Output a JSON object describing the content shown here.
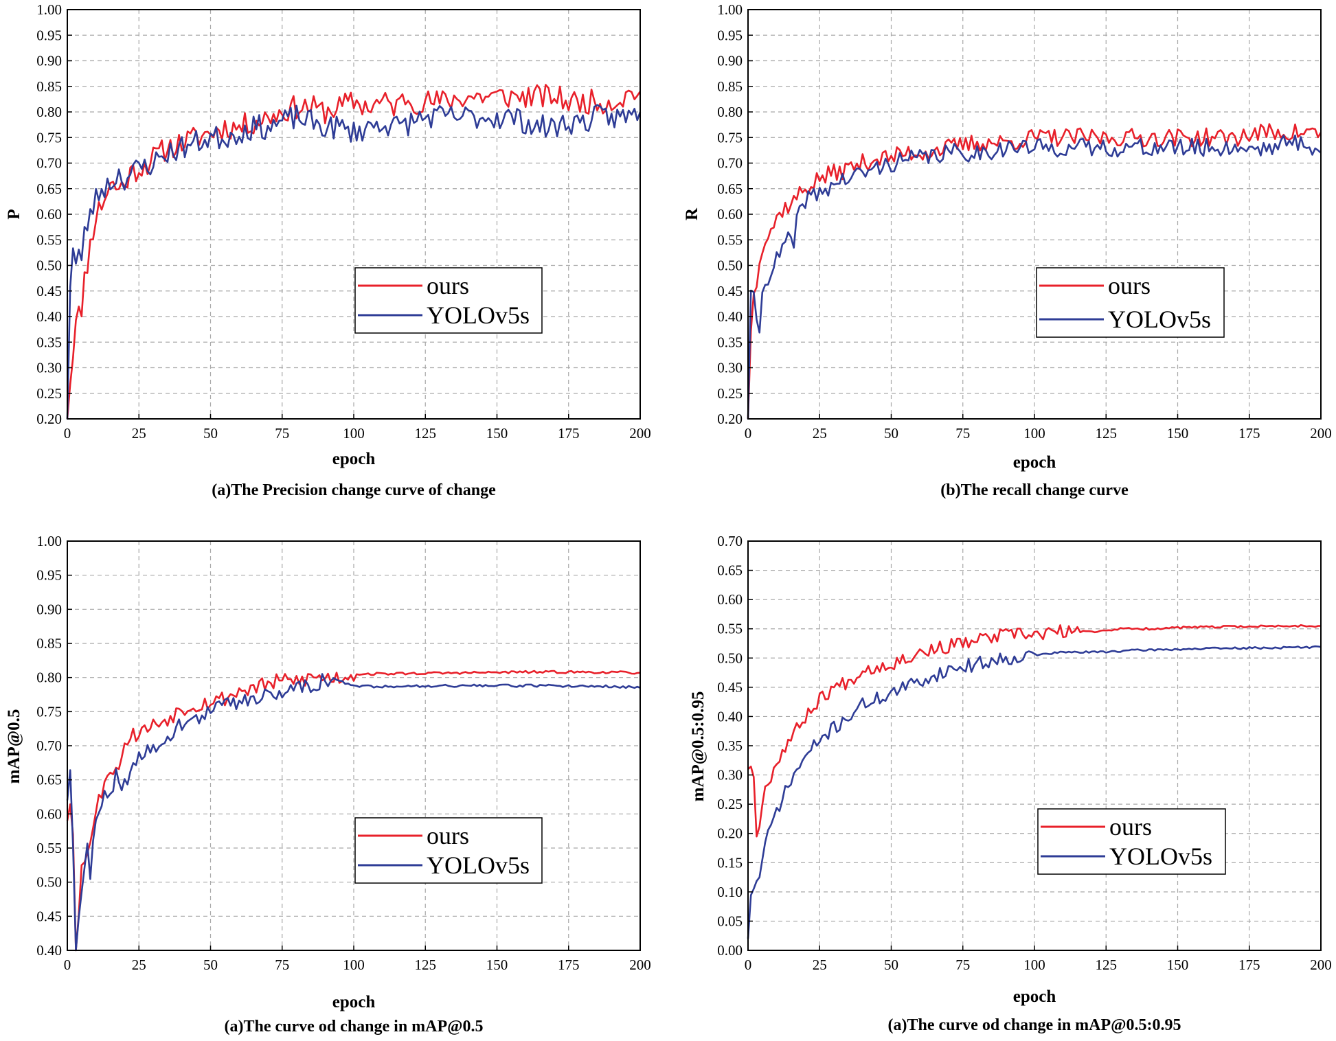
{
  "colors": {
    "ours": "#e8202a",
    "yolo": "#2e3c96",
    "grid": "#a8a8a8"
  },
  "chart_data": [
    {
      "type": "line",
      "caption": "(a)The Precision change curve of change",
      "xlabel": "epoch",
      "ylabel": "P",
      "xlim": [
        0,
        200
      ],
      "ylim": [
        0.2,
        1.0
      ],
      "xticks": [
        0,
        25,
        50,
        75,
        100,
        125,
        150,
        175,
        200
      ],
      "xtick_labels": [
        "0",
        "25",
        "50",
        "75",
        "100",
        "125",
        "150",
        "175",
        "200"
      ],
      "yticks": [
        0.2,
        0.25,
        0.3,
        0.35,
        0.4,
        0.45,
        0.5,
        0.55,
        0.6,
        0.65,
        0.7,
        0.75,
        0.8,
        0.85,
        0.9,
        0.95,
        1.0
      ],
      "ytick_labels": [
        "0.20",
        "0.25",
        "0.30",
        "0.35",
        "0.40",
        "0.45",
        "0.50",
        "0.55",
        "0.60",
        "0.65",
        "0.70",
        "0.75",
        "0.80",
        "0.85",
        "0.90",
        "0.95",
        "1.00"
      ],
      "grid": true,
      "legend_position": "middle-right",
      "series": [
        {
          "name": "ours",
          "color_key": "ours",
          "x": [
            0,
            1,
            2,
            3,
            4,
            5,
            6,
            8,
            10,
            12,
            15,
            18,
            20,
            22,
            25,
            28,
            30,
            35,
            40,
            45,
            50,
            55,
            60,
            65,
            70,
            75,
            80,
            85,
            90,
            95,
            100,
            105,
            110,
            115,
            118,
            120,
            125,
            130,
            140,
            150,
            160,
            170,
            175,
            180,
            185,
            190,
            195,
            197,
            200
          ],
          "y": [
            0.2,
            0.28,
            0.33,
            0.4,
            0.44,
            0.39,
            0.47,
            0.54,
            0.6,
            0.62,
            0.66,
            0.65,
            0.66,
            0.68,
            0.69,
            0.7,
            0.71,
            0.73,
            0.74,
            0.75,
            0.76,
            0.77,
            0.77,
            0.78,
            0.79,
            0.8,
            0.81,
            0.81,
            0.8,
            0.81,
            0.82,
            0.81,
            0.82,
            0.81,
            0.83,
            0.82,
            0.82,
            0.82,
            0.83,
            0.83,
            0.83,
            0.83,
            0.82,
            0.82,
            0.82,
            0.82,
            0.83,
            0.84,
            0.84
          ],
          "noise": 0.012,
          "seed": 11
        },
        {
          "name": "YOLOv5s",
          "color_key": "yolo",
          "x": [
            0,
            1,
            2,
            3,
            4,
            5,
            6,
            8,
            10,
            12,
            15,
            18,
            20,
            25,
            30,
            35,
            40,
            45,
            50,
            55,
            60,
            65,
            70,
            75,
            80,
            85,
            90,
            95,
            100,
            105,
            110,
            115,
            120,
            125,
            130,
            135,
            140,
            145,
            150,
            155,
            160,
            165,
            170,
            175,
            180,
            185,
            190,
            195,
            200
          ],
          "y": [
            0.2,
            0.47,
            0.54,
            0.5,
            0.53,
            0.5,
            0.56,
            0.6,
            0.63,
            0.65,
            0.66,
            0.68,
            0.67,
            0.69,
            0.7,
            0.72,
            0.73,
            0.74,
            0.75,
            0.75,
            0.76,
            0.77,
            0.77,
            0.78,
            0.79,
            0.78,
            0.77,
            0.77,
            0.76,
            0.77,
            0.78,
            0.77,
            0.78,
            0.79,
            0.79,
            0.79,
            0.79,
            0.79,
            0.79,
            0.79,
            0.78,
            0.77,
            0.77,
            0.78,
            0.78,
            0.79,
            0.79,
            0.79,
            0.8
          ],
          "noise": 0.012,
          "seed": 23
        }
      ]
    },
    {
      "type": "line",
      "caption": "(b)The recall change curve",
      "xlabel": "epoch",
      "ylabel": "R",
      "xlim": [
        0,
        200
      ],
      "ylim": [
        0.2,
        1.0
      ],
      "xticks": [
        0,
        25,
        50,
        75,
        100,
        125,
        150,
        175,
        200
      ],
      "xtick_labels": [
        "0",
        "25",
        "50",
        "75",
        "100",
        "125",
        "150",
        "175",
        "200"
      ],
      "yticks": [
        0.2,
        0.25,
        0.3,
        0.35,
        0.4,
        0.45,
        0.5,
        0.55,
        0.6,
        0.65,
        0.7,
        0.75,
        0.8,
        0.85,
        0.9,
        0.95,
        1.0
      ],
      "ytick_labels": [
        "0.20",
        "0.25",
        "0.30",
        "0.35",
        "0.40",
        "0.45",
        "0.50",
        "0.55",
        "0.60",
        "0.65",
        "0.70",
        "0.75",
        "0.80",
        "0.85",
        "0.90",
        "0.95",
        "1.00"
      ],
      "grid": true,
      "legend_position": "middle-right",
      "series": [
        {
          "name": "ours",
          "color_key": "ours",
          "x": [
            0,
            1,
            2,
            3,
            4,
            5,
            8,
            10,
            12,
            15,
            18,
            20,
            25,
            30,
            35,
            40,
            45,
            50,
            55,
            60,
            70,
            80,
            90,
            100,
            110,
            120,
            130,
            140,
            150,
            160,
            170,
            180,
            190,
            200
          ],
          "y": [
            0.2,
            0.38,
            0.44,
            0.47,
            0.52,
            0.54,
            0.57,
            0.59,
            0.61,
            0.62,
            0.64,
            0.65,
            0.67,
            0.68,
            0.69,
            0.7,
            0.71,
            0.71,
            0.72,
            0.72,
            0.73,
            0.74,
            0.74,
            0.75,
            0.75,
            0.75,
            0.75,
            0.75,
            0.75,
            0.75,
            0.75,
            0.76,
            0.76,
            0.76
          ],
          "noise": 0.009,
          "seed": 37
        },
        {
          "name": "YOLOv5s",
          "color_key": "yolo",
          "x": [
            0,
            1,
            2,
            3,
            4,
            5,
            6,
            8,
            10,
            12,
            15,
            16,
            17,
            18,
            20,
            25,
            30,
            35,
            40,
            45,
            50,
            60,
            70,
            80,
            90,
            100,
            110,
            120,
            130,
            140,
            150,
            160,
            170,
            180,
            190,
            195,
            200
          ],
          "y": [
            0.2,
            0.46,
            0.43,
            0.38,
            0.38,
            0.44,
            0.47,
            0.49,
            0.51,
            0.53,
            0.56,
            0.53,
            0.58,
            0.6,
            0.63,
            0.64,
            0.66,
            0.67,
            0.68,
            0.69,
            0.7,
            0.71,
            0.72,
            0.72,
            0.73,
            0.73,
            0.73,
            0.73,
            0.73,
            0.73,
            0.73,
            0.73,
            0.73,
            0.73,
            0.74,
            0.74,
            0.72
          ],
          "noise": 0.009,
          "seed": 41
        }
      ]
    },
    {
      "type": "line",
      "caption": "(a)The curve od change in mAP@0.5",
      "xlabel": "epoch",
      "ylabel": "mAP@0.5",
      "xlim": [
        0,
        200
      ],
      "ylim": [
        0.4,
        1.0
      ],
      "xticks": [
        0,
        25,
        50,
        75,
        100,
        125,
        150,
        175,
        200
      ],
      "xtick_labels": [
        "0",
        "25",
        "50",
        "75",
        "100",
        "125",
        "150",
        "175",
        "200"
      ],
      "yticks": [
        0.4,
        0.45,
        0.5,
        0.55,
        0.6,
        0.65,
        0.7,
        0.75,
        0.8,
        0.85,
        0.9,
        0.95,
        1.0
      ],
      "ytick_labels": [
        "0.40",
        "0.45",
        "0.50",
        "0.55",
        "0.60",
        "0.65",
        "0.70",
        "0.75",
        "0.80",
        "0.85",
        "0.90",
        "0.95",
        "1.00"
      ],
      "grid": true,
      "legend_position": "middle-right",
      "series": [
        {
          "name": "ours",
          "color_key": "ours",
          "x": [
            0,
            1,
            2,
            3,
            4,
            5,
            7,
            9,
            11,
            13,
            15,
            17,
            19,
            21,
            25,
            30,
            35,
            40,
            45,
            50,
            55,
            60,
            65,
            70,
            75,
            80,
            85,
            90,
            95,
            100,
            120,
            140,
            160,
            180,
            200
          ],
          "y": [
            0.59,
            0.62,
            0.58,
            0.4,
            0.45,
            0.52,
            0.55,
            0.58,
            0.62,
            0.65,
            0.67,
            0.66,
            0.69,
            0.71,
            0.72,
            0.73,
            0.74,
            0.755,
            0.76,
            0.765,
            0.77,
            0.78,
            0.785,
            0.79,
            0.795,
            0.795,
            0.8,
            0.8,
            0.8,
            0.805,
            0.806,
            0.807,
            0.808,
            0.808,
            0.807
          ],
          "noise": 0.006,
          "seed": 53,
          "noise_until": 100
        },
        {
          "name": "YOLOv5s",
          "color_key": "yolo",
          "x": [
            0,
            1,
            2,
            3,
            4,
            5,
            7,
            8,
            9,
            11,
            13,
            15,
            17,
            20,
            25,
            30,
            35,
            40,
            45,
            50,
            55,
            60,
            65,
            70,
            75,
            80,
            85,
            90,
            95,
            100,
            110,
            130,
            150,
            170,
            190,
            200
          ],
          "y": [
            0.62,
            0.67,
            0.55,
            0.4,
            0.44,
            0.48,
            0.55,
            0.5,
            0.56,
            0.6,
            0.64,
            0.63,
            0.66,
            0.64,
            0.68,
            0.7,
            0.715,
            0.73,
            0.74,
            0.75,
            0.76,
            0.765,
            0.77,
            0.775,
            0.78,
            0.785,
            0.79,
            0.795,
            0.795,
            0.787,
            0.787,
            0.788,
            0.788,
            0.788,
            0.787,
            0.785
          ],
          "noise": 0.006,
          "seed": 59,
          "noise_until": 95
        }
      ]
    },
    {
      "type": "line",
      "caption": "(a)The curve od change in mAP@0.5:0.95",
      "xlabel": "epoch",
      "ylabel": "mAP@0.5:0.95",
      "xlim": [
        0,
        200
      ],
      "ylim": [
        0.0,
        0.7
      ],
      "xticks": [
        0,
        25,
        50,
        75,
        100,
        125,
        150,
        175,
        200
      ],
      "xtick_labels": [
        "0",
        "25",
        "50",
        "75",
        "100",
        "125",
        "150",
        "175",
        "200"
      ],
      "yticks": [
        0.0,
        0.05,
        0.1,
        0.15,
        0.2,
        0.25,
        0.3,
        0.35,
        0.4,
        0.45,
        0.5,
        0.55,
        0.6,
        0.65,
        0.7
      ],
      "ytick_labels": [
        "0.00",
        "0.05",
        "0.10",
        "0.15",
        "0.20",
        "0.25",
        "0.30",
        "0.35",
        "0.40",
        "0.45",
        "0.50",
        "0.55",
        "0.60",
        "0.65",
        "0.70"
      ],
      "grid": true,
      "legend_position": "middle-right",
      "series": [
        {
          "name": "ours",
          "color_key": "ours",
          "x": [
            0,
            1,
            2,
            3,
            4,
            5,
            7,
            10,
            13,
            16,
            20,
            25,
            30,
            35,
            40,
            50,
            60,
            70,
            80,
            90,
            100,
            110,
            120,
            130,
            140,
            150,
            160,
            175,
            190,
            200
          ],
          "y": [
            0.31,
            0.32,
            0.3,
            0.19,
            0.22,
            0.26,
            0.29,
            0.32,
            0.35,
            0.37,
            0.4,
            0.43,
            0.45,
            0.46,
            0.48,
            0.49,
            0.51,
            0.52,
            0.53,
            0.54,
            0.54,
            0.545,
            0.545,
            0.55,
            0.55,
            0.552,
            0.553,
            0.554,
            0.555,
            0.555
          ],
          "noise": 0.006,
          "seed": 67,
          "noise_until": 115
        },
        {
          "name": "YOLOv5s",
          "color_key": "yolo",
          "x": [
            0,
            1,
            2,
            3,
            4,
            5,
            6,
            8,
            10,
            13,
            16,
            20,
            25,
            30,
            35,
            40,
            50,
            60,
            70,
            80,
            90,
            100,
            110,
            120,
            130,
            140,
            150,
            160,
            175,
            190,
            200
          ],
          "y": [
            0.02,
            0.1,
            0.1,
            0.12,
            0.13,
            0.15,
            0.18,
            0.21,
            0.24,
            0.27,
            0.3,
            0.33,
            0.36,
            0.38,
            0.4,
            0.42,
            0.44,
            0.46,
            0.48,
            0.49,
            0.5,
            0.505,
            0.51,
            0.51,
            0.512,
            0.514,
            0.515,
            0.516,
            0.517,
            0.518,
            0.519
          ],
          "noise": 0.006,
          "seed": 71,
          "noise_until": 100
        }
      ]
    }
  ]
}
